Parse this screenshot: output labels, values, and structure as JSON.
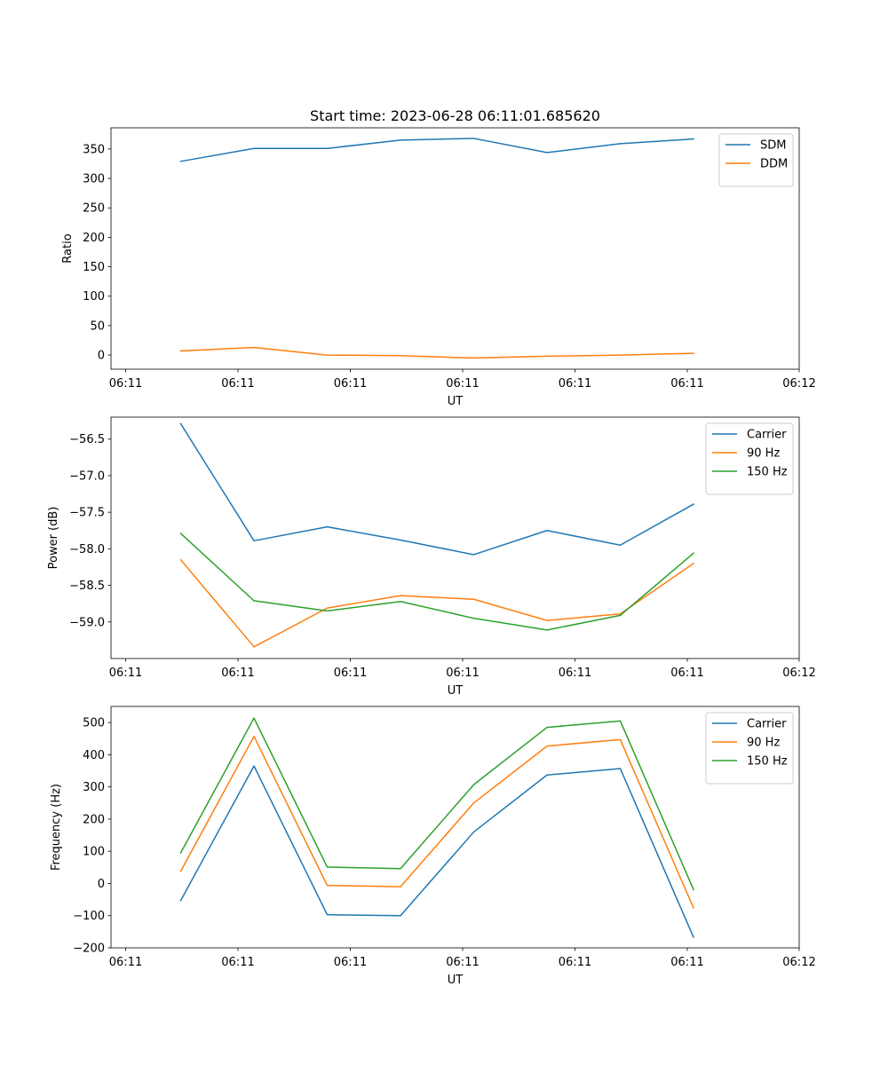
{
  "figure": {
    "title": "Start time: 2023-06-28 06:11:01.685620"
  },
  "chart_data": [
    {
      "type": "line",
      "ylabel": "Ratio",
      "xlabel": "UT",
      "x_ticks": [
        "06:11",
        "06:11",
        "06:11",
        "06:11",
        "06:11",
        "06:11",
        "06:12"
      ],
      "y_ticks": [
        "0",
        "50",
        "100",
        "150",
        "200",
        "250",
        "300",
        "350"
      ],
      "ylim": [
        -24,
        386
      ],
      "grid": false,
      "legend_position": "upper-right",
      "series": [
        {
          "name": "SDM",
          "color": "#1f77b4",
          "values": [
            329,
            351,
            351,
            365,
            368,
            344,
            359,
            367
          ]
        },
        {
          "name": "DDM",
          "color": "#ff7f0e",
          "values": [
            7,
            13,
            0,
            -1,
            -5,
            -2,
            0,
            3
          ]
        }
      ]
    },
    {
      "type": "line",
      "ylabel": "Power (dB)",
      "xlabel": "UT",
      "x_ticks": [
        "06:11",
        "06:11",
        "06:11",
        "06:11",
        "06:11",
        "06:11",
        "06:12"
      ],
      "y_ticks": [
        "−56.5",
        "−57.0",
        "−57.5",
        "−58.0",
        "−58.5",
        "−59.0"
      ],
      "ylim": [
        -59.5,
        -56.2
      ],
      "grid": false,
      "legend_position": "upper-right",
      "series": [
        {
          "name": "Carrier",
          "color": "#1f77b4",
          "values": [
            -56.29,
            -57.89,
            -57.7,
            -57.88,
            -58.08,
            -57.75,
            -57.95,
            -57.39
          ]
        },
        {
          "name": "90 Hz",
          "color": "#ff7f0e",
          "values": [
            -58.15,
            -59.34,
            -58.81,
            -58.64,
            -58.69,
            -58.98,
            -58.89,
            -58.2
          ]
        },
        {
          "name": "150 Hz",
          "color": "#2ca02c",
          "values": [
            -57.79,
            -58.71,
            -58.85,
            -58.72,
            -58.95,
            -59.11,
            -58.91,
            -58.06
          ]
        }
      ]
    },
    {
      "type": "line",
      "ylabel": "Frequency (Hz)",
      "xlabel": "UT",
      "x_ticks": [
        "06:11",
        "06:11",
        "06:11",
        "06:11",
        "06:11",
        "06:11",
        "06:12"
      ],
      "y_ticks": [
        "−200",
        "−100",
        "0",
        "100",
        "200",
        "300",
        "400",
        "500"
      ],
      "ylim": [
        -200,
        550
      ],
      "grid": false,
      "legend_position": "upper-right",
      "series": [
        {
          "name": "Carrier",
          "color": "#1f77b4",
          "values": [
            -53,
            365,
            -97,
            -100,
            160,
            337,
            357,
            -167
          ]
        },
        {
          "name": "90 Hz",
          "color": "#ff7f0e",
          "values": [
            38,
            457,
            -6,
            -10,
            250,
            427,
            447,
            -76
          ]
        },
        {
          "name": "150 Hz",
          "color": "#2ca02c",
          "values": [
            95,
            514,
            51,
            46,
            307,
            485,
            505,
            -19
          ]
        }
      ]
    }
  ]
}
